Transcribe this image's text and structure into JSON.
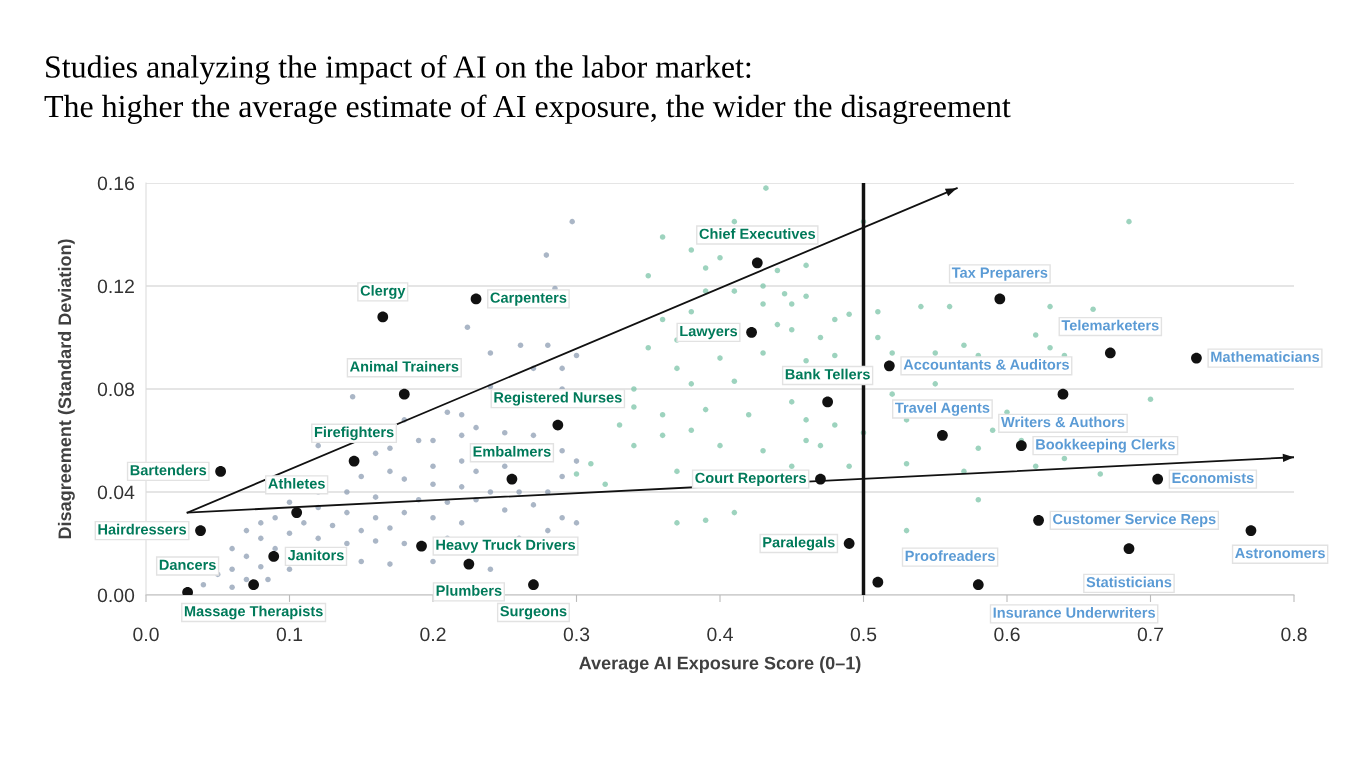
{
  "chart_data": {
    "type": "scatter",
    "title": "Studies analyzing the impact of AI on the labor market:\nThe higher the average estimate of AI exposure, the wider the disagreement",
    "xlabel": "Average AI Exposure Score (0–1)",
    "ylabel": "Disagreement (Standard Deviation)",
    "xlim": [
      0,
      0.8
    ],
    "xticks": [
      {
        "value": 0,
        "label": "0.0"
      },
      0.1,
      0.2,
      0.3,
      0.4,
      {
        "value": 0.5,
        "label": "0.5"
      },
      0.6,
      0.7,
      0.8
    ],
    "ylim": [
      0,
      0.16
    ],
    "yticks": [
      {
        "value": 0,
        "label": "0.00"
      },
      {
        "value": 0.04,
        "label": "0.04"
      },
      {
        "value": 0.08,
        "label": "0.08"
      },
      {
        "value": 0.12,
        "label": "0.12"
      },
      {
        "value": 0.16,
        "label": "0.16"
      }
    ],
    "grid": "y",
    "marker": "circle",
    "ref_lines": [
      {
        "axis": "x",
        "value": 0.5,
        "color": "#111111"
      }
    ],
    "series": [
      {
        "color": "#8e9db3",
        "x": [
          0.297,
          0.279,
          0.285,
          0.224,
          0.261,
          0.28,
          0.24,
          0.3,
          0.29,
          0.27,
          0.24,
          0.29,
          0.144,
          0.18,
          0.21,
          0.22,
          0.23,
          0.2,
          0.22,
          0.25,
          0.27,
          0.19,
          0.12,
          0.16,
          0.17,
          0.2,
          0.22,
          0.23,
          0.25,
          0.29,
          0.3,
          0.29,
          0.28,
          0.26,
          0.24,
          0.22,
          0.2,
          0.18,
          0.17,
          0.15,
          0.12,
          0.14,
          0.16,
          0.19,
          0.21,
          0.23,
          0.25,
          0.27,
          0.29,
          0.3,
          0.28,
          0.22,
          0.2,
          0.18,
          0.16,
          0.14,
          0.12,
          0.1,
          0.09,
          0.08,
          0.11,
          0.13,
          0.15,
          0.17,
          0.21,
          0.26,
          0.18,
          0.16,
          0.14,
          0.12,
          0.1,
          0.08,
          0.07,
          0.06,
          0.07,
          0.09,
          0.15,
          0.17,
          0.06,
          0.08,
          0.1,
          0.07,
          0.05,
          0.04,
          0.06,
          0.085,
          0.2,
          0.24
        ],
        "values": [
          0.145,
          0.132,
          0.119,
          0.104,
          0.097,
          0.097,
          0.094,
          0.093,
          0.088,
          0.088,
          0.081,
          0.08,
          0.077,
          0.068,
          0.071,
          0.07,
          0.065,
          0.06,
          0.062,
          0.063,
          0.062,
          0.06,
          0.058,
          0.055,
          0.057,
          0.05,
          0.052,
          0.048,
          0.05,
          0.056,
          0.052,
          0.046,
          0.04,
          0.04,
          0.04,
          0.042,
          0.043,
          0.045,
          0.048,
          0.046,
          0.04,
          0.04,
          0.038,
          0.037,
          0.036,
          0.037,
          0.033,
          0.035,
          0.03,
          0.028,
          0.025,
          0.028,
          0.03,
          0.032,
          0.03,
          0.032,
          0.034,
          0.036,
          0.03,
          0.028,
          0.028,
          0.027,
          0.025,
          0.026,
          0.022,
          0.022,
          0.02,
          0.021,
          0.02,
          0.022,
          0.024,
          0.022,
          0.025,
          0.018,
          0.015,
          0.018,
          0.013,
          0.012,
          0.01,
          0.011,
          0.01,
          0.006,
          0.008,
          0.004,
          0.003,
          0.006,
          0.013,
          0.01
        ]
      },
      {
        "color": "#7cc4a8",
        "x": [
          0.432,
          0.41,
          0.36,
          0.38,
          0.4,
          0.44,
          0.39,
          0.46,
          0.35,
          0.43,
          0.445,
          0.39,
          0.41,
          0.38,
          0.43,
          0.45,
          0.46,
          0.5,
          0.685,
          0.36,
          0.35,
          0.37,
          0.44,
          0.45,
          0.47,
          0.48,
          0.49,
          0.51,
          0.54,
          0.56,
          0.63,
          0.66,
          0.51,
          0.52,
          0.55,
          0.57,
          0.58,
          0.62,
          0.63,
          0.64,
          0.48,
          0.46,
          0.43,
          0.4,
          0.37,
          0.38,
          0.41,
          0.55,
          0.52,
          0.6,
          0.34,
          0.34,
          0.36,
          0.39,
          0.42,
          0.45,
          0.46,
          0.48,
          0.5,
          0.53,
          0.59,
          0.61,
          0.58,
          0.62,
          0.64,
          0.665,
          0.7,
          0.53,
          0.57,
          0.38,
          0.4,
          0.43,
          0.46,
          0.33,
          0.36,
          0.34,
          0.37,
          0.45,
          0.49,
          0.47,
          0.41,
          0.39,
          0.32,
          0.3,
          0.58,
          0.53,
          0.31,
          0.37
        ],
        "values": [
          0.158,
          0.145,
          0.139,
          0.134,
          0.131,
          0.126,
          0.127,
          0.128,
          0.124,
          0.12,
          0.117,
          0.118,
          0.118,
          0.11,
          0.113,
          0.113,
          0.116,
          0.145,
          0.145,
          0.107,
          0.096,
          0.099,
          0.105,
          0.103,
          0.1,
          0.107,
          0.109,
          0.11,
          0.112,
          0.112,
          0.112,
          0.111,
          0.1,
          0.094,
          0.094,
          0.097,
          0.093,
          0.101,
          0.096,
          0.093,
          0.093,
          0.091,
          0.094,
          0.092,
          0.088,
          0.082,
          0.083,
          0.082,
          0.078,
          0.071,
          0.08,
          0.073,
          0.07,
          0.072,
          0.07,
          0.075,
          0.068,
          0.066,
          0.063,
          0.068,
          0.064,
          0.06,
          0.057,
          0.05,
          0.053,
          0.047,
          0.076,
          0.051,
          0.048,
          0.064,
          0.058,
          0.056,
          0.06,
          0.066,
          0.062,
          0.058,
          0.048,
          0.05,
          0.05,
          0.058,
          0.032,
          0.029,
          0.043,
          0.047,
          0.037,
          0.025,
          0.051,
          0.028
        ]
      },
      {
        "color": "#111111",
        "x": [
          0.029,
          0.075,
          0.038,
          0.052,
          0.089,
          0.105,
          0.145,
          0.18,
          0.165,
          0.23,
          0.192,
          0.225,
          0.27,
          0.255,
          0.287,
          0.426,
          0.422,
          0.475,
          0.47,
          0.49,
          0.51,
          0.58,
          0.518,
          0.595,
          0.555,
          0.639,
          0.61,
          0.672,
          0.732,
          0.705,
          0.622,
          0.77,
          0.685
        ],
        "values": [
          0.001,
          0.004,
          0.025,
          0.048,
          0.015,
          0.032,
          0.052,
          0.078,
          0.108,
          0.115,
          0.019,
          0.012,
          0.004,
          0.045,
          0.066,
          0.129,
          0.102,
          0.075,
          0.045,
          0.02,
          0.005,
          0.004,
          0.089,
          0.115,
          0.062,
          0.078,
          0.058,
          0.094,
          0.092,
          0.045,
          0.029,
          0.025,
          0.018
        ]
      },
      {
        "type": "line",
        "marker": "none",
        "color": "#111111",
        "x": [
          0.029,
          0.565
        ],
        "values": [
          0.032,
          0.158
        ]
      },
      {
        "type": "line",
        "marker": "none",
        "color": "#111111",
        "x": [
          0.029,
          0.8
        ],
        "values": [
          0.032,
          0.0535
        ]
      }
    ],
    "annotations": [
      {
        "text": "Dancers",
        "x": 0.029,
        "y": 0.001
      },
      {
        "text": "Massage Therapists",
        "x": 0.075,
        "y": 0.004
      },
      {
        "text": "Hairdressers",
        "x": 0.038,
        "y": 0.025
      },
      {
        "text": "Bartenders",
        "x": 0.052,
        "y": 0.048
      },
      {
        "text": "Janitors",
        "x": 0.089,
        "y": 0.015
      },
      {
        "text": "Athletes",
        "x": 0.105,
        "y": 0.032
      },
      {
        "text": "Firefighters",
        "x": 0.145,
        "y": 0.052
      },
      {
        "text": "Animal Trainers",
        "x": 0.18,
        "y": 0.078
      },
      {
        "text": "Clergy",
        "x": 0.165,
        "y": 0.108
      },
      {
        "text": "Carpenters",
        "x": 0.23,
        "y": 0.115
      },
      {
        "text": "Heavy Truck Drivers",
        "x": 0.192,
        "y": 0.019
      },
      {
        "text": "Plumbers",
        "x": 0.225,
        "y": 0.012
      },
      {
        "text": "Surgeons",
        "x": 0.27,
        "y": 0.004
      },
      {
        "text": "Embalmers",
        "x": 0.255,
        "y": 0.045
      },
      {
        "text": "Registered Nurses",
        "x": 0.287,
        "y": 0.066
      },
      {
        "text": "Chief Executives",
        "x": 0.426,
        "y": 0.129
      },
      {
        "text": "Lawyers",
        "x": 0.422,
        "y": 0.102
      },
      {
        "text": "Bank Tellers",
        "x": 0.475,
        "y": 0.075
      },
      {
        "text": "Court Reporters",
        "x": 0.47,
        "y": 0.045
      },
      {
        "text": "Paralegals",
        "x": 0.49,
        "y": 0.02
      },
      {
        "text": "Proofreaders",
        "x": 0.51,
        "y": 0.005
      },
      {
        "text": "Insurance Underwriters",
        "x": 0.58,
        "y": 0.004
      },
      {
        "text": "Accountants & Auditors",
        "x": 0.518,
        "y": 0.089
      },
      {
        "text": "Tax Preparers",
        "x": 0.595,
        "y": 0.115
      },
      {
        "text": "Travel Agents",
        "x": 0.555,
        "y": 0.062
      },
      {
        "text": "Writers & Authors",
        "x": 0.639,
        "y": 0.078
      },
      {
        "text": "Bookkeeping Clerks",
        "x": 0.61,
        "y": 0.058
      },
      {
        "text": "Telemarketers",
        "x": 0.672,
        "y": 0.094
      },
      {
        "text": "Mathematicians",
        "x": 0.732,
        "y": 0.092
      },
      {
        "text": "Economists",
        "x": 0.705,
        "y": 0.045
      },
      {
        "text": "Customer Service Reps",
        "x": 0.622,
        "y": 0.029
      },
      {
        "text": "Astronomers",
        "x": 0.77,
        "y": 0.025
      },
      {
        "text": "Statisticians",
        "x": 0.685,
        "y": 0.018
      }
    ]
  }
}
